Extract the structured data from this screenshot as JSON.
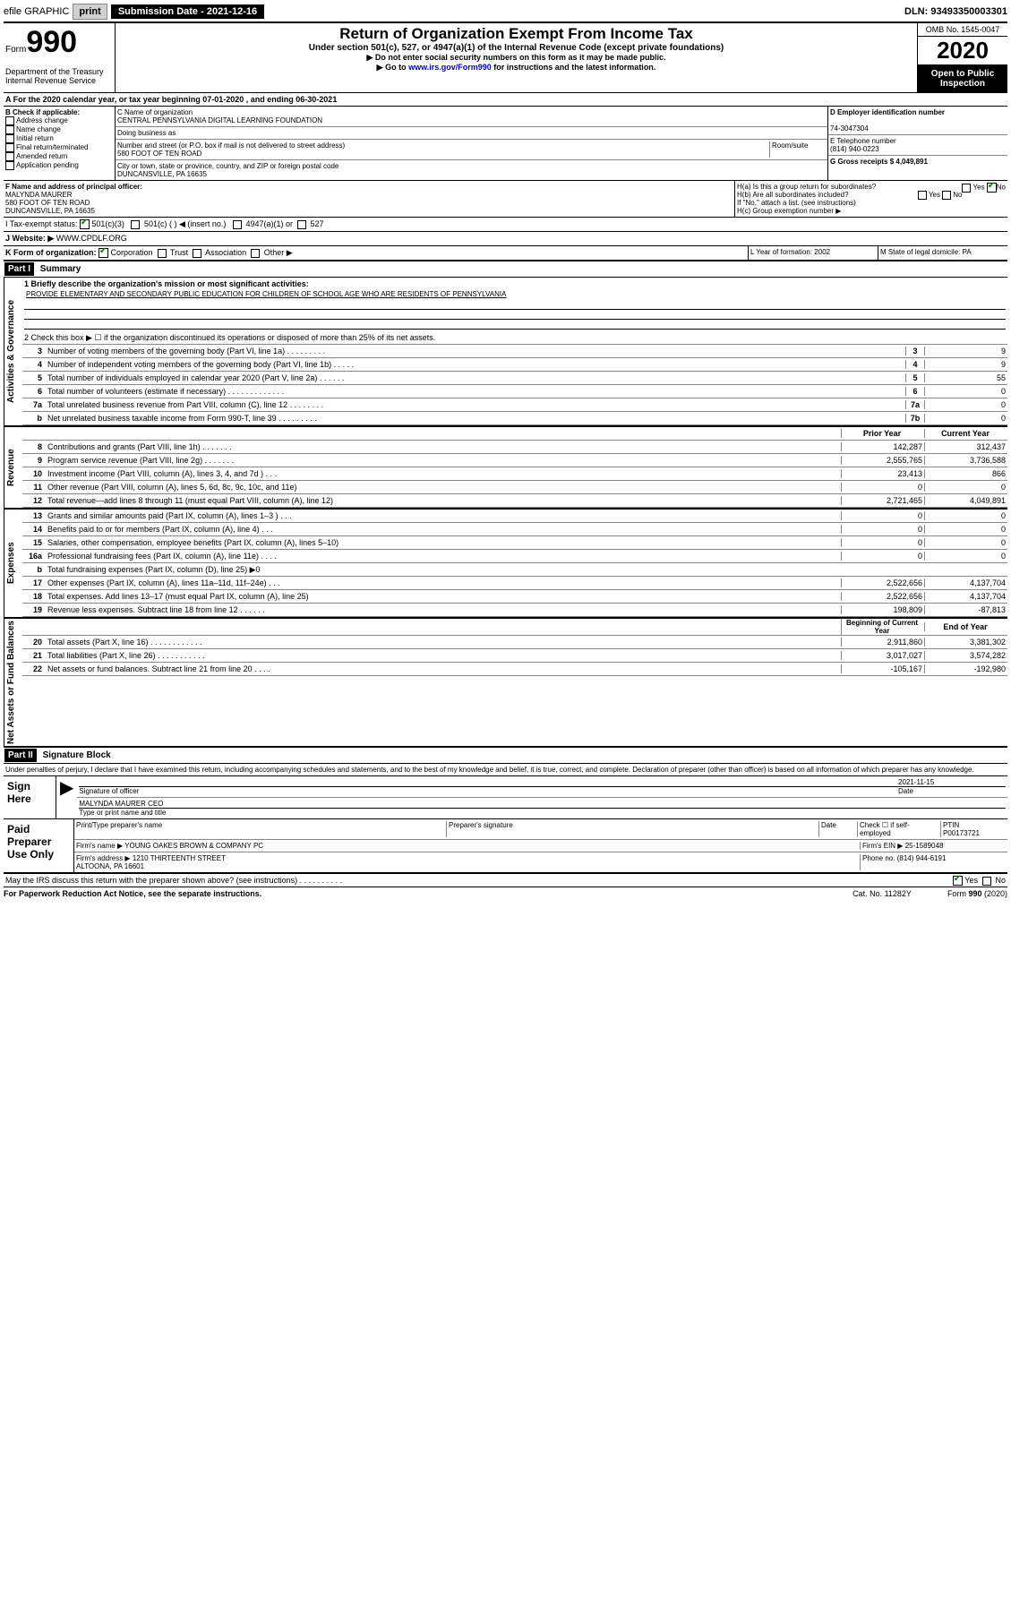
{
  "topbar": {
    "efile": "efile GRAPHIC",
    "print": "print",
    "subdate_label": "Submission Date - 2021-12-16",
    "dln": "DLN: 93493350003301"
  },
  "header": {
    "form_label": "Form",
    "form_num": "990",
    "dept": "Department of the Treasury\nInternal Revenue Service",
    "title": "Return of Organization Exempt From Income Tax",
    "sub1": "Under section 501(c), 527, or 4947(a)(1) of the Internal Revenue Code (except private foundations)",
    "sub2": "▶ Do not enter social security numbers on this form as it may be made public.",
    "sub3_pre": "▶ Go to ",
    "sub3_link": "www.irs.gov/Form990",
    "sub3_post": " for instructions and the latest information.",
    "omb": "OMB No. 1545-0047",
    "year": "2020",
    "open": "Open to Public Inspection"
  },
  "section_a": "A  For the 2020 calendar year, or tax year beginning 07-01-2020   , and ending 06-30-2021",
  "box_b": {
    "label": "B Check if applicable:",
    "items": [
      "Address change",
      "Name change",
      "Initial return",
      "Final return/terminated",
      "Amended return",
      "Application pending"
    ]
  },
  "box_c": {
    "name_label": "C Name of organization",
    "name": "CENTRAL PENNSYLVANIA DIGITAL LEARNING FOUNDATION",
    "dba_label": "Doing business as",
    "addr_label": "Number and street (or P.O. box if mail is not delivered to street address)",
    "room_label": "Room/suite",
    "addr": "580 FOOT OF TEN ROAD",
    "city_label": "City or town, state or province, country, and ZIP or foreign postal code",
    "city": "DUNCANSVILLE, PA  16635"
  },
  "box_d": {
    "label": "D Employer identification number",
    "value": "74-3047304"
  },
  "box_e": {
    "label": "E Telephone number",
    "value": "(814) 940-0223"
  },
  "box_g": {
    "label": "G Gross receipts $ 4,049,891"
  },
  "box_f": {
    "label": "F Name and address of principal officer:",
    "name": "MALYNDA MAURER",
    "addr1": "580 FOOT OF TEN ROAD",
    "addr2": "DUNCANSVILLE, PA  16635"
  },
  "box_h": {
    "a": "H(a)  Is this a group return for subordinates?",
    "b": "H(b)  Are all subordinates included?",
    "note": "If \"No,\" attach a list. (see instructions)",
    "c": "H(c)  Group exemption number ▶",
    "yes": "Yes",
    "no": "No"
  },
  "tax_exempt": {
    "label": "I  Tax-exempt status:",
    "opt1": "501(c)(3)",
    "opt2": "501(c) (    ) ◀ (insert no.)",
    "opt3": "4947(a)(1) or",
    "opt4": "527"
  },
  "website": {
    "label": "J  Website: ▶",
    "value": "WWW.CPDLF.ORG"
  },
  "box_k": {
    "label": "K Form of organization:",
    "corp": "Corporation",
    "trust": "Trust",
    "assoc": "Association",
    "other": "Other ▶"
  },
  "box_l": {
    "label": "L Year of formation: 2002"
  },
  "box_m": {
    "label": "M State of legal domicile: PA"
  },
  "part1": {
    "tag": "Part I",
    "title": "Summary",
    "q1_label": "1  Briefly describe the organization's mission or most significant activities:",
    "q1_text": "PROVIDE ELEMENTARY AND SECONDARY PUBLIC EDUCATION FOR CHILDREN OF SCHOOL AGE WHO ARE RESIDENTS OF PENNSYLVANIA",
    "q2": "2   Check this box ▶ ☐  if the organization discontinued its operations or disposed of more than 25% of its net assets.",
    "rows_ag": [
      {
        "n": "3",
        "d": "Number of voting members of the governing body (Part VI, line 1a)  .   .   .   .   .   .   .   .   .",
        "c": "3",
        "v": "9"
      },
      {
        "n": "4",
        "d": "Number of independent voting members of the governing body (Part VI, line 1b)  .   .   .   .   .",
        "c": "4",
        "v": "9"
      },
      {
        "n": "5",
        "d": "Total number of individuals employed in calendar year 2020 (Part V, line 2a)  .   .   .   .   .   .",
        "c": "5",
        "v": "55"
      },
      {
        "n": "6",
        "d": "Total number of volunteers (estimate if necessary)  .   .   .   .   .   .   .   .   .   .   .   .   .",
        "c": "6",
        "v": "0"
      },
      {
        "n": "7a",
        "d": "Total unrelated business revenue from Part VIII, column (C), line 12  .   .   .   .   .   .   .   .",
        "c": "7a",
        "v": "0"
      },
      {
        "n": "b",
        "d": "Net unrelated business taxable income from Form 990-T, line 39  .   .   .   .   .   .   .   .   .",
        "c": "7b",
        "v": "0"
      }
    ],
    "prior_label": "Prior Year",
    "current_label": "Current Year",
    "rows_rev": [
      {
        "n": "8",
        "d": "Contributions and grants (Part VIII, line 1h)  .   .   .   .   .   .   .",
        "p": "142,287",
        "c": "312,437"
      },
      {
        "n": "9",
        "d": "Program service revenue (Part VIII, line 2g)  .   .   .   .   .   .   .",
        "p": "2,555,765",
        "c": "3,736,588"
      },
      {
        "n": "10",
        "d": "Investment income (Part VIII, column (A), lines 3, 4, and 7d )  .   .   .",
        "p": "23,413",
        "c": "866"
      },
      {
        "n": "11",
        "d": "Other revenue (Part VIII, column (A), lines 5, 6d, 8c, 9c, 10c, and 11e)",
        "p": "0",
        "c": "0"
      },
      {
        "n": "12",
        "d": "Total revenue—add lines 8 through 11 (must equal Part VIII, column (A), line 12)",
        "p": "2,721,465",
        "c": "4,049,891"
      }
    ],
    "rows_exp": [
      {
        "n": "13",
        "d": "Grants and similar amounts paid (Part IX, column (A), lines 1–3 )  .   .   .",
        "p": "0",
        "c": "0"
      },
      {
        "n": "14",
        "d": "Benefits paid to or for members (Part IX, column (A), line 4)  .   .   .",
        "p": "0",
        "c": "0"
      },
      {
        "n": "15",
        "d": "Salaries, other compensation, employee benefits (Part IX, column (A), lines 5–10)",
        "p": "0",
        "c": "0"
      },
      {
        "n": "16a",
        "d": "Professional fundraising fees (Part IX, column (A), line 11e)  .   .   .   .",
        "p": "0",
        "c": "0"
      },
      {
        "n": "b",
        "d": "Total fundraising expenses (Part IX, column (D), line 25) ▶0",
        "p": "",
        "c": ""
      },
      {
        "n": "17",
        "d": "Other expenses (Part IX, column (A), lines 11a–11d, 11f–24e)  .   .   .",
        "p": "2,522,656",
        "c": "4,137,704"
      },
      {
        "n": "18",
        "d": "Total expenses. Add lines 13–17 (must equal Part IX, column (A), line 25)",
        "p": "2,522,656",
        "c": "4,137,704"
      },
      {
        "n": "19",
        "d": "Revenue less expenses. Subtract line 18 from line 12  .   .   .   .   .   .",
        "p": "198,809",
        "c": "-87,813"
      }
    ],
    "beg_label": "Beginning of Current Year",
    "end_label": "End of Year",
    "rows_net": [
      {
        "n": "20",
        "d": "Total assets (Part X, line 16)  .   .   .   .   .   .   .   .   .   .   .   .",
        "p": "2,911,860",
        "c": "3,381,302"
      },
      {
        "n": "21",
        "d": "Total liabilities (Part X, line 26)  .   .   .   .   .   .   .   .   .   .   .",
        "p": "3,017,027",
        "c": "3,574,282"
      },
      {
        "n": "22",
        "d": "Net assets or fund balances. Subtract line 21 from line 20  .   .   .   .",
        "p": "-105,167",
        "c": "-192,980"
      }
    ],
    "side_ag": "Activities & Governance",
    "side_rev": "Revenue",
    "side_exp": "Expenses",
    "side_net": "Net Assets or Fund Balances"
  },
  "part2": {
    "tag": "Part II",
    "title": "Signature Block",
    "decl": "Under penalties of perjury, I declare that I have examined this return, including accompanying schedules and statements, and to the best of my knowledge and belief, it is true, correct, and complete. Declaration of preparer (other than officer) is based on all information of which preparer has any knowledge.",
    "sign_here": "Sign Here",
    "sig_officer": "Signature of officer",
    "date_label": "Date",
    "date_val": "2021-11-15",
    "officer_name": "MALYNDA MAURER CEO",
    "type_name": "Type or print name and title",
    "paid_prep": "Paid Preparer Use Only",
    "prep_name_label": "Print/Type preparer's name",
    "prep_sig_label": "Preparer's signature",
    "check_self": "Check ☐ if self-employed",
    "ptin_label": "PTIN",
    "ptin": "P00173721",
    "firm_name_label": "Firm's name    ▶",
    "firm_name": "YOUNG OAKES BROWN & COMPANY PC",
    "firm_ein_label": "Firm's EIN ▶",
    "firm_ein": "25-1589048",
    "firm_addr_label": "Firm's address ▶",
    "firm_addr": "1210 THIRTEENTH STREET\nALTOONA, PA  16601",
    "phone_label": "Phone no.",
    "phone": "(814) 944-6191",
    "discuss": "May the IRS discuss this return with the preparer shown above? (see instructions)  .   .   .   .   .   .   .   .   .   .",
    "yes": "Yes",
    "no": "No"
  },
  "footer": {
    "pra": "For Paperwork Reduction Act Notice, see the separate instructions.",
    "cat": "Cat. No. 11282Y",
    "form": "Form 990 (2020)"
  }
}
